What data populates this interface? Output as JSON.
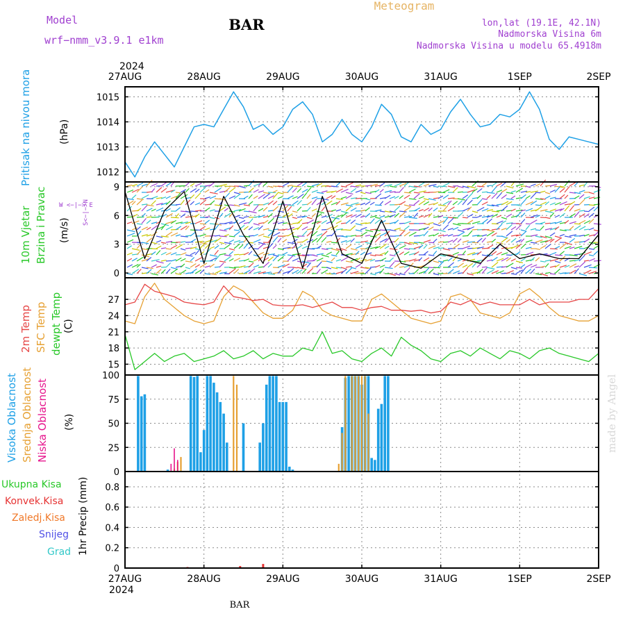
{
  "header": {
    "model_label": "Model",
    "model_name": "wrf−nmm_v3.9.1  e1km",
    "station": "BAR",
    "product": "Meteogram",
    "lonlat": "lon,lat (19.1E, 42.1N)",
    "altitude": "Nadmorska Visina 6m",
    "model_altitude": "Nadmorska Visina u modelu 65.4918m",
    "top_year": "2024",
    "bottom_year": "2024",
    "footer_station": "BAR",
    "watermark": "made by Angel"
  },
  "x_axis": {
    "dates": [
      "27AUG",
      "28AUG",
      "29AUG",
      "30AUG",
      "31AUG",
      "1SEP",
      "2SEP"
    ]
  },
  "colors": {
    "pressure": "#1ea0e6",
    "temp2m": "#e64646",
    "sfc_temp": "#e6a032",
    "dewpt": "#28c828",
    "high_cloud": "#1ea0e6",
    "mid_cloud": "#e6a032",
    "low_cloud": "#e6148c",
    "total_precip": "#28c828",
    "conv_precip": "#e63232",
    "frozen_precip": "#f07828",
    "snow": "#5050e6",
    "graupel": "#32c8c8"
  },
  "panels": {
    "pressure": {
      "label": "Pritisak na nivou mora",
      "unit": "(hPa)",
      "yticks": [
        "1012",
        "1013",
        "1014",
        "1015"
      ]
    },
    "wind": {
      "label1": "10m Vjetar",
      "label2": "Brzina i Pravac",
      "unit": "(m/s)",
      "compass": "W  <−|−>  E",
      "compass_ns": "S<−|−>N",
      "yticks": [
        "0",
        "3",
        "6",
        "9"
      ]
    },
    "temp": {
      "label_2m": "2m Temp",
      "label_sfc": "SFC Temp",
      "label_dew": "dewpt Temp",
      "unit": "(C)",
      "yticks": [
        "15",
        "18",
        "21",
        "24",
        "27"
      ]
    },
    "cloud": {
      "label_high": "Visoka Oblacnost",
      "label_mid": "Srednja Oblacnost",
      "label_low": "Niska Oblacnost",
      "unit": "(%)",
      "yticks": [
        "0",
        "25",
        "50",
        "75",
        "100"
      ]
    },
    "precip": {
      "legend": [
        "Ukupna Kisa",
        "Konvek.Kisa",
        "Zaledj.Kisa",
        "Snijeg",
        "Grad"
      ],
      "unit": "1hr Precip (mm)",
      "yticks": [
        "0",
        "0.2",
        "0.4",
        "0.6",
        "0.8"
      ]
    }
  },
  "chart_data": [
    {
      "type": "line",
      "panel": "pressure",
      "x_hours": [
        0,
        3,
        6,
        9,
        12,
        15,
        18,
        21,
        24,
        27,
        30,
        33,
        36,
        39,
        42,
        45,
        48,
        51,
        54,
        57,
        60,
        63,
        66,
        69,
        72,
        75,
        78,
        81,
        84,
        87,
        90,
        93,
        96,
        99,
        102,
        105,
        108,
        111,
        114,
        117,
        120,
        123,
        126,
        129,
        132,
        135,
        138,
        141,
        144
      ],
      "series": [
        {
          "name": "Pritisak na nivou mora",
          "values": [
            1012.4,
            1011.8,
            1012.6,
            1013.2,
            1012.7,
            1012.2,
            1013.0,
            1013.8,
            1013.9,
            1013.8,
            1014.5,
            1015.2,
            1014.6,
            1013.7,
            1013.9,
            1013.5,
            1013.8,
            1014.5,
            1014.8,
            1014.3,
            1013.2,
            1013.5,
            1014.1,
            1013.5,
            1013.2,
            1013.8,
            1014.7,
            1014.3,
            1013.4,
            1013.2,
            1013.9,
            1013.5,
            1013.7,
            1014.4,
            1014.9,
            1014.3,
            1013.8,
            1013.9,
            1014.3,
            1014.2,
            1014.5,
            1015.2,
            1014.5,
            1013.3,
            1012.9,
            1013.4,
            1013.3,
            1013.2,
            1013.1
          ]
        }
      ],
      "ylim": [
        1011.6,
        1015.4
      ],
      "ylabel": "(hPa)"
    },
    {
      "type": "line",
      "panel": "wind",
      "x_hours": [
        0,
        6,
        12,
        18,
        24,
        30,
        36,
        42,
        48,
        54,
        60,
        66,
        72,
        78,
        84,
        90,
        96,
        102,
        108,
        114,
        120,
        126,
        132,
        138,
        144
      ],
      "series": [
        {
          "name": "10m Vjetar",
          "values": [
            8.5,
            1.5,
            6.5,
            8.5,
            1.0,
            8.0,
            4.0,
            1.0,
            7.5,
            0.5,
            8.0,
            2.0,
            1.0,
            5.5,
            1.0,
            0.5,
            2.0,
            1.5,
            1.0,
            3.0,
            1.5,
            2.0,
            1.5,
            1.5,
            4.0
          ]
        }
      ],
      "ylim": [
        -0.5,
        9.5
      ],
      "ylabel": "(m/s)"
    },
    {
      "type": "line",
      "panel": "temp",
      "x_hours": [
        0,
        3,
        6,
        9,
        12,
        15,
        18,
        21,
        24,
        27,
        30,
        33,
        36,
        39,
        42,
        45,
        48,
        51,
        54,
        57,
        60,
        63,
        66,
        69,
        72,
        75,
        78,
        81,
        84,
        87,
        90,
        93,
        96,
        99,
        102,
        105,
        108,
        111,
        114,
        117,
        120,
        123,
        126,
        129,
        132,
        135,
        138,
        141,
        144
      ],
      "series": [
        {
          "name": "2m Temp",
          "values": [
            26.0,
            26.5,
            29.8,
            28.5,
            28.0,
            27.5,
            26.5,
            26.2,
            26.0,
            26.5,
            29.5,
            27.5,
            27.2,
            26.8,
            27.0,
            26.0,
            25.8,
            25.8,
            26.0,
            25.5,
            26.0,
            26.5,
            25.5,
            25.5,
            25.0,
            25.5,
            25.7,
            25.0,
            25.0,
            24.8,
            25.0,
            24.5,
            24.8,
            26.5,
            26.0,
            26.8,
            26.0,
            26.5,
            26.0,
            26.0,
            26.0,
            27.0,
            26.0,
            26.5,
            26.5,
            26.5,
            27.0,
            27.0,
            29.0
          ]
        },
        {
          "name": "SFC Temp",
          "values": [
            23.0,
            22.5,
            27.5,
            30.0,
            27.0,
            25.5,
            24.0,
            23.0,
            22.5,
            23.0,
            27.5,
            29.5,
            28.5,
            26.5,
            24.5,
            23.5,
            23.5,
            25.0,
            28.5,
            27.5,
            25.0,
            24.0,
            23.5,
            23.0,
            23.0,
            27.0,
            28.0,
            26.5,
            25.0,
            23.5,
            23.0,
            22.5,
            23.0,
            27.5,
            28.0,
            27.0,
            24.5,
            24.0,
            23.5,
            24.5,
            28.0,
            29.0,
            27.5,
            25.5,
            24.0,
            23.5,
            23.0,
            23.0,
            24.0
          ]
        },
        {
          "name": "dewpt Temp",
          "values": [
            20.5,
            14.0,
            15.5,
            17.0,
            15.5,
            16.5,
            17.0,
            15.5,
            16.0,
            16.5,
            17.5,
            16.0,
            16.5,
            17.5,
            16.0,
            17.0,
            16.5,
            16.5,
            18.0,
            17.5,
            21.0,
            17.0,
            17.5,
            16.0,
            15.5,
            17.0,
            18.0,
            16.5,
            20.0,
            18.5,
            17.5,
            16.0,
            15.5,
            17.0,
            17.5,
            16.5,
            18.0,
            17.0,
            16.0,
            17.5,
            17.0,
            16.0,
            17.5,
            18.0,
            17.0,
            16.5,
            16.0,
            15.5,
            17.0
          ]
        }
      ],
      "ylim": [
        13.0,
        31.0
      ],
      "ylabel": "(C)"
    },
    {
      "type": "bar",
      "panel": "cloud",
      "series": [
        {
          "name": "Visoka Oblacnost",
          "x_hours": [
            4,
            5,
            6,
            13,
            20,
            21,
            22,
            23,
            24,
            25,
            26,
            27,
            28,
            29,
            30,
            31,
            36,
            41,
            42,
            43,
            44,
            45,
            46,
            47,
            48,
            49,
            50,
            51,
            66,
            67,
            68,
            69,
            70,
            71,
            72,
            73,
            74,
            75,
            76,
            77,
            78,
            79,
            80
          ],
          "values": [
            99,
            78,
            80,
            2,
            99,
            98,
            99,
            20,
            43,
            99,
            99,
            92,
            82,
            72,
            60,
            30,
            50,
            30,
            50,
            90,
            99,
            99,
            99,
            72,
            72,
            72,
            5,
            2,
            46,
            97,
            99,
            99,
            99,
            99,
            90,
            99,
            99,
            14,
            12,
            65,
            70,
            99,
            99
          ]
        },
        {
          "name": "Srednja Oblacnost",
          "x_hours": [
            15,
            16,
            17,
            33,
            34,
            65,
            66,
            67,
            69,
            70,
            71,
            72,
            73,
            74
          ],
          "values": [
            3,
            10,
            15,
            99,
            90,
            8,
            40,
            99,
            99,
            99,
            99,
            99,
            99,
            60
          ]
        },
        {
          "name": "Niska Oblacnost",
          "x_hours": [
            14,
            15,
            16
          ],
          "values": [
            8,
            24,
            12
          ]
        }
      ],
      "ylim": [
        0,
        100
      ],
      "ylabel": "(%)"
    },
    {
      "type": "bar",
      "panel": "precip",
      "series": [
        {
          "name": "Ukupna Kisa",
          "x_hours": [],
          "values": []
        },
        {
          "name": "Konvek.Kisa",
          "x_hours": [
            19,
            35,
            42
          ],
          "values": [
            0.01,
            0.02,
            0.04
          ]
        },
        {
          "name": "Zaledj.Kisa",
          "x_hours": [],
          "values": []
        },
        {
          "name": "Snijeg",
          "x_hours": [],
          "values": []
        },
        {
          "name": "Grad",
          "x_hours": [],
          "values": []
        }
      ],
      "ylim": [
        0,
        0.95
      ],
      "ylabel": "1hr Precip (mm)"
    }
  ]
}
